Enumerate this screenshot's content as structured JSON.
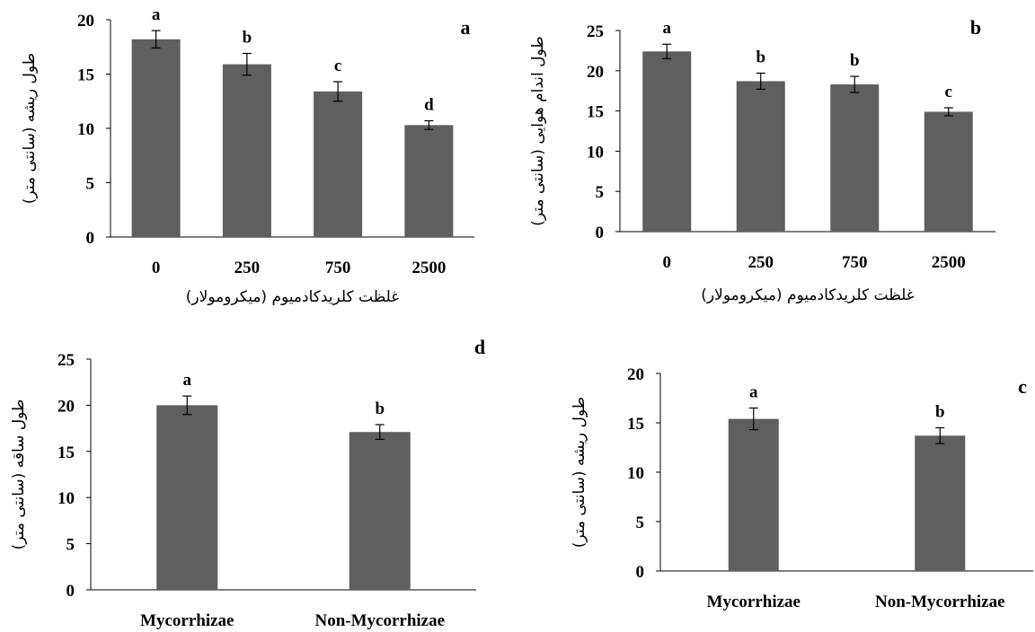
{
  "chart_data": [
    {
      "type": "bar",
      "panel_label": "a",
      "categories": [
        "0",
        "250",
        "750",
        "2500"
      ],
      "values": [
        18.2,
        15.9,
        13.4,
        10.3
      ],
      "errors": [
        0.8,
        1.0,
        0.9,
        0.4
      ],
      "letters": [
        "a",
        "b",
        "c",
        "d"
      ],
      "ylim": [
        0,
        20
      ],
      "yticks": [
        0,
        5,
        10,
        15,
        20
      ],
      "xlabel": "غلظت کلریدکادمیوم (میکرومولار)",
      "ylabel": "طول ریشه (سانتی متر)",
      "grid": false,
      "bar_color": "#5f5f5f"
    },
    {
      "type": "bar",
      "panel_label": "b",
      "categories": [
        "0",
        "250",
        "750",
        "2500"
      ],
      "values": [
        22.4,
        18.7,
        18.3,
        14.9
      ],
      "errors": [
        0.9,
        1.0,
        1.0,
        0.5
      ],
      "letters": [
        "a",
        "b",
        "b",
        "c"
      ],
      "ylim": [
        0,
        25
      ],
      "yticks": [
        0,
        5,
        10,
        15,
        20,
        25
      ],
      "xlabel": "غلظت کلریدکادمیوم (میکرومولار)",
      "ylabel": "طول اندام هوایی (سانتی متر)",
      "grid": false,
      "bar_color": "#5f5f5f"
    },
    {
      "type": "bar",
      "panel_label": "d",
      "categories": [
        "Mycorrhizae",
        "Non-Mycorrhizae"
      ],
      "values": [
        20.0,
        17.1
      ],
      "errors": [
        1.0,
        0.8
      ],
      "letters": [
        "a",
        "b"
      ],
      "ylim": [
        0,
        25
      ],
      "yticks": [
        0,
        5,
        10,
        15,
        20,
        25
      ],
      "xlabel": "",
      "ylabel": "طول ساقه (سانتی متر)",
      "grid": false,
      "bar_color": "#5f5f5f"
    },
    {
      "type": "bar",
      "panel_label": "c",
      "categories": [
        "Mycorrhizae",
        "Non-Mycorrhizae"
      ],
      "values": [
        15.4,
        13.7
      ],
      "errors": [
        1.1,
        0.8
      ],
      "letters": [
        "a",
        "b"
      ],
      "ylim": [
        0,
        20
      ],
      "yticks": [
        0,
        5,
        10,
        15,
        20
      ],
      "xlabel": "",
      "ylabel": "طول ریشه (سانتی متر)",
      "grid": false,
      "bar_color": "#5f5f5f"
    }
  ]
}
